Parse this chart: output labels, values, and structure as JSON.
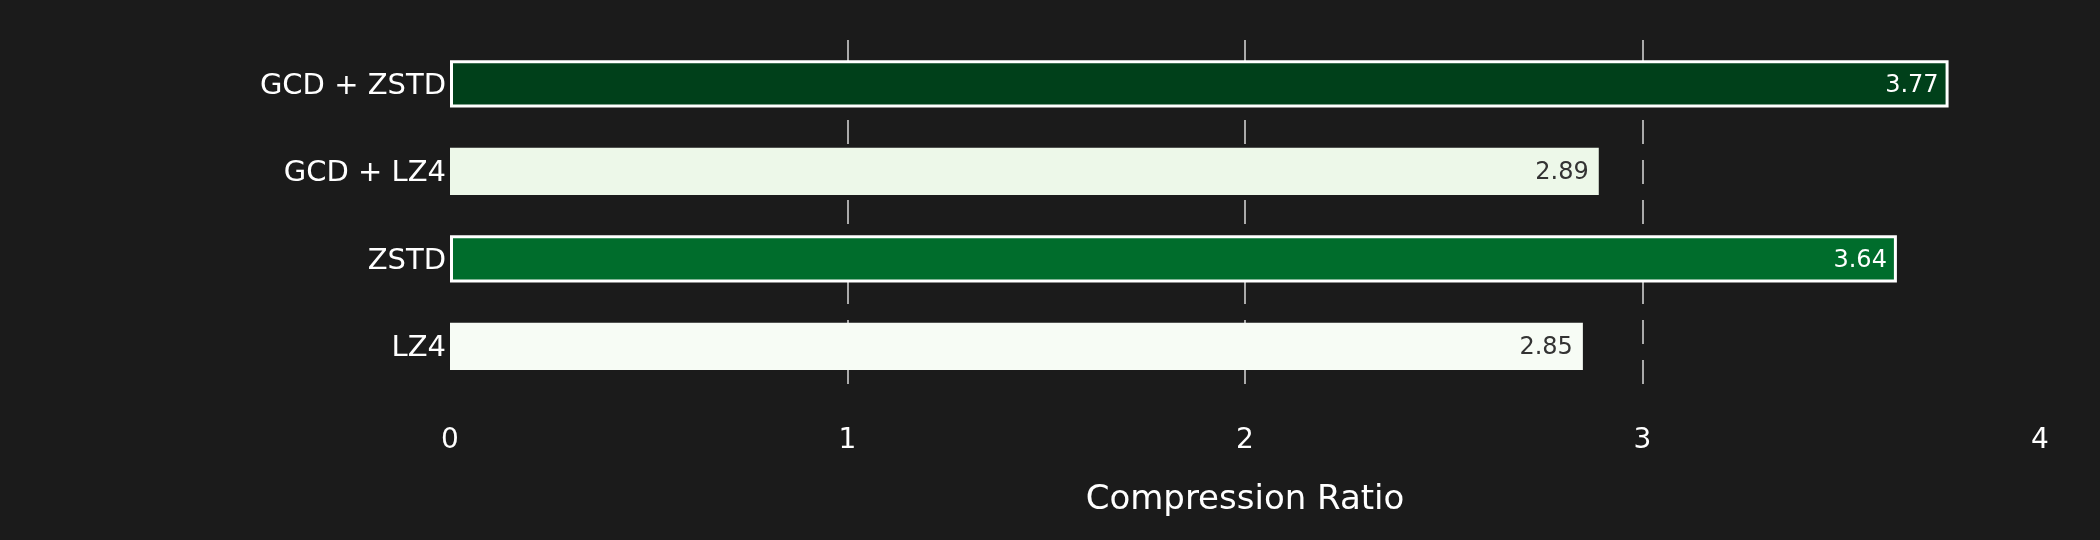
{
  "chart_data": {
    "type": "bar",
    "orientation": "horizontal",
    "xlabel": "Compression Ratio",
    "categories": [
      "GCD + ZSTD",
      "GCD + LZ4",
      "ZSTD",
      "LZ4"
    ],
    "values": [
      3.77,
      2.89,
      3.64,
      2.85
    ],
    "colors": [
      "#00401a",
      "#edf8e9",
      "#006d2c",
      "#f7fcf5"
    ],
    "xlim": [
      0,
      4
    ],
    "xticks": [
      0,
      1,
      2,
      3,
      4
    ],
    "grid": "x",
    "data_labels": true
  }
}
